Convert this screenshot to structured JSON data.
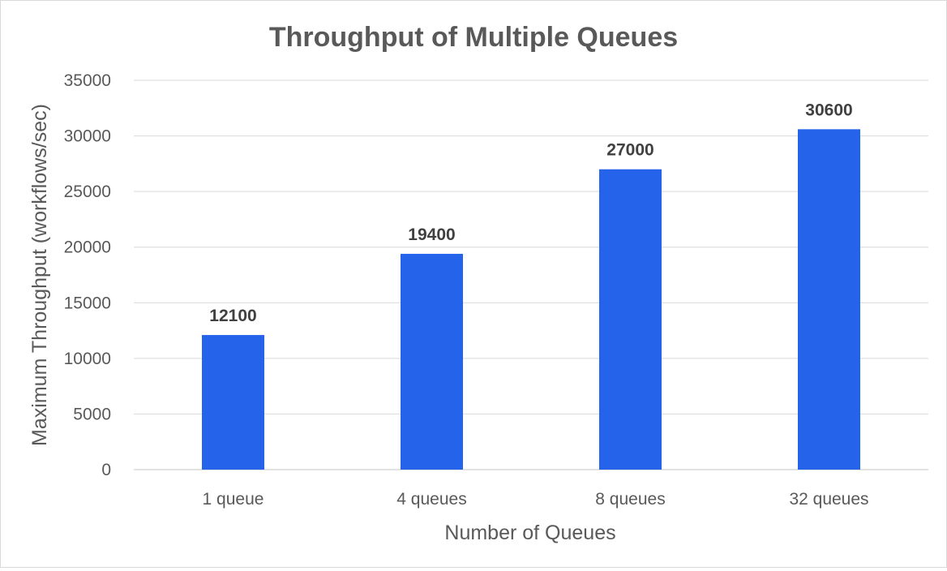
{
  "chart_data": {
    "type": "bar",
    "title": "Throughput of Multiple Queues",
    "xlabel": "Number of Queues",
    "ylabel": "Maximum Throughput (workflows/sec)",
    "categories": [
      "1 queue",
      "4 queues",
      "8 queues",
      "32 queues"
    ],
    "series": [
      {
        "values": [
          12100,
          19400,
          27000,
          30600
        ]
      }
    ],
    "data_labels": [
      "12100",
      "19400",
      "27000",
      "30600"
    ],
    "ylim": [
      0,
      35000
    ],
    "yticks": [
      0,
      5000,
      10000,
      15000,
      20000,
      25000,
      30000,
      35000
    ],
    "grid": true,
    "legend": "none",
    "bar_color": "#2563EB"
  }
}
